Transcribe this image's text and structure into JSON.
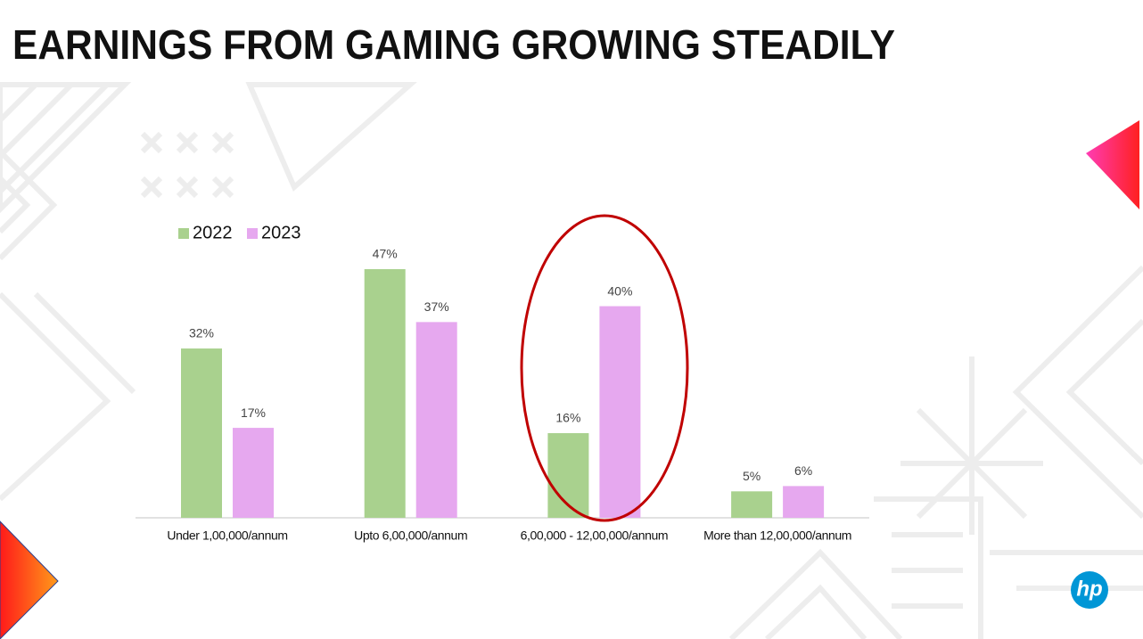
{
  "chart_data": {
    "type": "bar",
    "title": "EARNINGS FROM GAMING GROWING STEADILY",
    "categories": [
      "Under 1,00,000/annum",
      "Upto 6,00,000/annum",
      "6,00,000 - 12,00,000/annum",
      "More than 12,00,000/annum"
    ],
    "series": [
      {
        "name": "2022",
        "color": "#a9d18e",
        "values": [
          32,
          47,
          16,
          5
        ],
        "value_labels": [
          "32%",
          "47%",
          "16%",
          "5%"
        ]
      },
      {
        "name": "2023",
        "color": "#e6a8ef",
        "values": [
          17,
          37,
          40,
          6
        ],
        "value_labels": [
          "17%",
          "37%",
          "40%",
          "6%"
        ]
      }
    ],
    "legend": "top-left"
  },
  "logo": "hp"
}
